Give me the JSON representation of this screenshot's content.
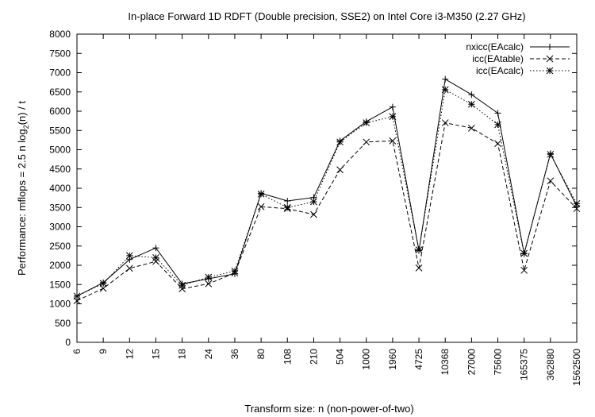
{
  "chart_data": {
    "type": "line",
    "title": "In-place Forward 1D RDFT (Double precision, SSE2) on Intel Core i3-M350 (2.27 GHz)",
    "xlabel": "Transform size: n (non-power-of-two)",
    "ylabel_main": "Performance: mflops = 2.5 n log",
    "ylabel_sub": "2",
    "ylabel_tail": "(n) / t",
    "ylim": [
      0,
      8000
    ],
    "y_ticks": [
      "0",
      "500",
      "1000",
      "1500",
      "2000",
      "2500",
      "3000",
      "3500",
      "4000",
      "4500",
      "5000",
      "5500",
      "6000",
      "6500",
      "7000",
      "7500",
      "8000"
    ],
    "categories": [
      "6",
      "9",
      "12",
      "15",
      "18",
      "24",
      "36",
      "80",
      "108",
      "210",
      "504",
      "1000",
      "1960",
      "4725",
      "10368",
      "27000",
      "75600",
      "165375",
      "362880",
      "1562500"
    ],
    "grid": false,
    "legend_position": "top-right",
    "series": [
      {
        "name": "nxicc(EAcalc)",
        "marker": "plus",
        "dash": "solid",
        "values": [
          1200,
          1550,
          2150,
          2450,
          1520,
          1650,
          1780,
          3870,
          3670,
          3760,
          5230,
          5730,
          6110,
          2380,
          6830,
          6430,
          5950,
          2300,
          4900,
          3530
        ]
      },
      {
        "name": "icc(EAtable)",
        "marker": "cross",
        "dash": "dashed",
        "values": [
          1080,
          1400,
          1920,
          2100,
          1390,
          1520,
          1800,
          3520,
          3470,
          3320,
          4480,
          5200,
          5230,
          1930,
          5700,
          5560,
          5160,
          1870,
          4190,
          3470
        ]
      },
      {
        "name": "icc(EAcalc)",
        "marker": "star",
        "dash": "dotted",
        "values": [
          1200,
          1530,
          2250,
          2200,
          1480,
          1690,
          1850,
          3850,
          3500,
          3650,
          5200,
          5700,
          5860,
          2400,
          6560,
          6180,
          5650,
          2310,
          4880,
          3600
        ]
      }
    ]
  }
}
